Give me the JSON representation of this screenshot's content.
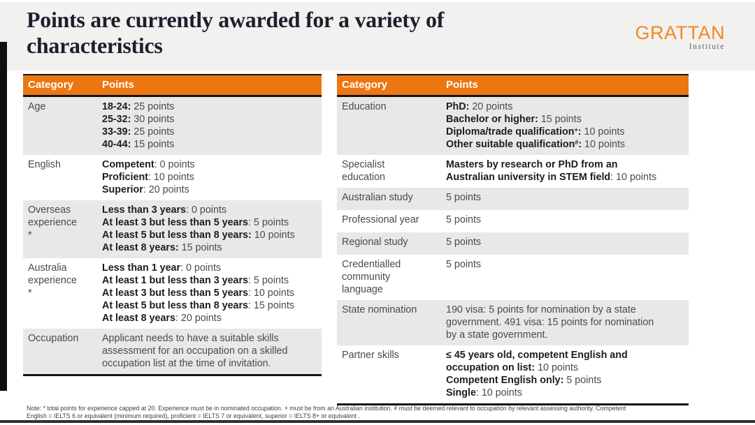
{
  "header": {
    "title_line1": "Points are currently awarded for a variety of",
    "title_line2": "characteristics",
    "logo_text": "GRATTAN",
    "logo_subtext": "Institute"
  },
  "colors": {
    "accent_orange": "#EC7612",
    "logo_orange": "#F2891E",
    "shaded_row_gray": "#E8E8E8",
    "title_band_gray": "#F1F1F0",
    "border_black": "#141414",
    "title_ink": "#1F1E2C"
  },
  "tables": [
    {
      "header": {
        "category": "Category",
        "points": "Points"
      },
      "rows": [
        {
          "id": "age",
          "category_lines": [
            "Age"
          ],
          "points_lines": [
            [
              {
                "t": "18-24:",
                "b": 1
              },
              {
                "t": " 25 points"
              }
            ],
            [
              {
                "t": "25-32:",
                "b": 1
              },
              {
                "t": " 30 points"
              }
            ],
            [
              {
                "t": "33-39:",
                "b": 1
              },
              {
                "t": " 25 points"
              }
            ],
            [
              {
                "t": "40-44:",
                "b": 1
              },
              {
                "t": " 15 points"
              }
            ]
          ]
        },
        {
          "id": "english",
          "category_lines": [
            "English"
          ],
          "points_lines": [
            [
              {
                "t": "Competent",
                "b": 1
              },
              {
                "t": ": 0 points"
              }
            ],
            [
              {
                "t": "Proficient",
                "b": 1
              },
              {
                "t": ": 10 points"
              }
            ],
            [
              {
                "t": "Superior",
                "b": 1
              },
              {
                "t": ": 20 points"
              }
            ]
          ]
        },
        {
          "id": "overseas-experience",
          "category_lines": [
            "Overseas",
            "experience",
            "*"
          ],
          "points_lines": [
            [
              {
                "t": "Less than 3 years",
                "b": 1
              },
              {
                "t": ": 0 points"
              }
            ],
            [
              {
                "t": "At least 3 but less than 5 years",
                "b": 1
              },
              {
                "t": ": 5 points"
              }
            ],
            [
              {
                "t": "At least 5 but less than 8 years:",
                "b": 1
              },
              {
                "t": " 10 points"
              }
            ],
            [
              {
                "t": "At least 8 years:",
                "b": 1
              },
              {
                "t": " 15 points"
              }
            ]
          ]
        },
        {
          "id": "australia-experience",
          "category_lines": [
            "Australia",
            "experience",
            "*"
          ],
          "points_lines": [
            [
              {
                "t": "Less than 1 year",
                "b": 1
              },
              {
                "t": ": 0 points"
              }
            ],
            [
              {
                "t": "At least 1 but less than 3 years",
                "b": 1
              },
              {
                "t": ": 5 points"
              }
            ],
            [
              {
                "t": "At least 3 but less than 5 years",
                "b": 1
              },
              {
                "t": ": 10 points"
              }
            ],
            [
              {
                "t": "At least 5 but less than 8 years",
                "b": 1
              },
              {
                "t": ": 15 points"
              }
            ],
            [
              {
                "t": "At least 8 years",
                "b": 1
              },
              {
                "t": ": 20 points"
              }
            ]
          ]
        },
        {
          "id": "occupation",
          "category_lines": [
            "Occupation"
          ],
          "points_lines": [
            [
              {
                "t": "Applicant needs to have a suitable skills"
              }
            ],
            [
              {
                "t": "assessment for an occupation on a skilled"
              }
            ],
            [
              {
                "t": "occupation list at the time of invitation."
              }
            ]
          ]
        }
      ]
    },
    {
      "header": {
        "category": "Category",
        "points": "Points"
      },
      "rows": [
        {
          "id": "education",
          "category_lines": [
            "Education"
          ],
          "points_lines": [
            [
              {
                "t": "PhD:",
                "b": 1
              },
              {
                "t": " 20 points"
              }
            ],
            [
              {
                "t": "Bachelor or higher:",
                "b": 1
              },
              {
                "t": " 15 points"
              }
            ],
            [
              {
                "t": "Diploma/trade qualification",
                "b": 1
              },
              {
                "t": "+",
                "b": 1,
                "sup": 1
              },
              {
                "t": ":",
                "b": 1
              },
              {
                "t": " 10 points"
              }
            ],
            [
              {
                "t": "Other suitable qualification",
                "b": 1
              },
              {
                "t": "#",
                "b": 1,
                "sup": 1
              },
              {
                "t": ":",
                "b": 1
              },
              {
                "t": " 10 points"
              }
            ]
          ]
        },
        {
          "id": "specialist-education",
          "category_lines": [
            "Specialist",
            "education"
          ],
          "points_lines": [
            [
              {
                "t": "Masters by research or PhD from an",
                "b": 1
              }
            ],
            [
              {
                "t": "Australian university in STEM field",
                "b": 1
              },
              {
                "t": ": 10 points"
              }
            ]
          ]
        },
        {
          "id": "australian-study",
          "category_lines": [
            "Australian study"
          ],
          "points_lines": [
            [
              {
                "t": "5 points"
              }
            ]
          ]
        },
        {
          "id": "professional-year",
          "category_lines": [
            "Professional year"
          ],
          "points_lines": [
            [
              {
                "t": "5 points"
              }
            ]
          ]
        },
        {
          "id": "regional-study",
          "category_lines": [
            "Regional study"
          ],
          "points_lines": [
            [
              {
                "t": "5 points"
              }
            ]
          ]
        },
        {
          "id": "credentialled-community-language",
          "category_lines": [
            "Credentialled",
            "community",
            "language"
          ],
          "points_lines": [
            [
              {
                "t": "5 points"
              }
            ]
          ]
        },
        {
          "id": "state-nomination",
          "category_lines": [
            "State nomination"
          ],
          "points_lines": [
            [
              {
                "t": "190 visa: 5 points for nomination by a state"
              }
            ],
            [
              {
                "t": "government. 491 visa: 15 points for nomination"
              }
            ],
            [
              {
                "t": "by a state government."
              }
            ]
          ]
        },
        {
          "id": "partner-skills",
          "category_lines": [
            "Partner skills"
          ],
          "points_lines": [
            [
              {
                "t": "≤ 45 years old, competent English and",
                "b": 1
              }
            ],
            [
              {
                "t": "occupation on list:",
                "b": 1
              },
              {
                "t": " 10 points"
              }
            ],
            [
              {
                "t": "Competent English only:",
                "b": 1
              },
              {
                "t": " 5 points"
              }
            ],
            [
              {
                "t": "Single",
                "b": 1
              },
              {
                "t": ": 10 points"
              }
            ]
          ]
        }
      ]
    }
  ],
  "footnote": {
    "line1": "Note: * total points for experience capped at 20. Experience must be in nominated occupation. + must be from an Australian institution. # must be deemed relevant to occupation by relevant assessing authority. Competent",
    "line2": "English = IELTS 6 or equivalent (minimum required), proficient = IELTS 7 or equivalent, superior = IELTS 8+ or equivalent ."
  }
}
